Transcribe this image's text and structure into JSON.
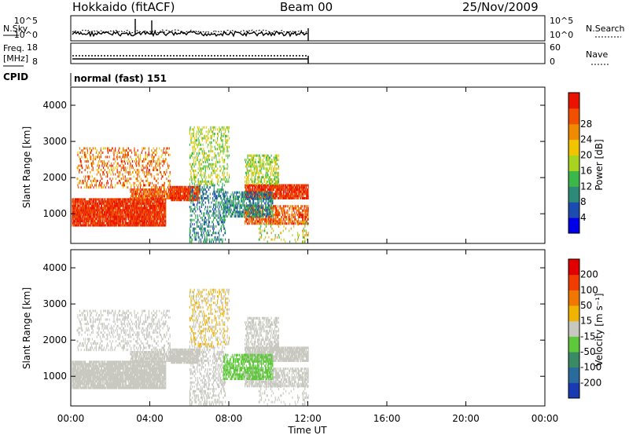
{
  "header": {
    "station": "Hokkaido (fitACF)",
    "beam": "Beam 00",
    "date": "25/Nov/2009"
  },
  "cpid_label": "CPID",
  "cpid_text": "normal (fast) 151",
  "chart_data": [
    {
      "type": "line",
      "name": "N.Sky panel",
      "left_label": "N.Sky",
      "right_label": "N.Search",
      "yticks_left": [
        "10^5",
        "10^0"
      ],
      "yticks_right": [
        "10^5",
        "10^0"
      ],
      "x_range_hours": [
        0,
        24
      ],
      "data_end_hours": 12
    },
    {
      "type": "line",
      "name": "Frequency panel",
      "left_label_1": "Freq.",
      "left_label_2": "[MHz]",
      "right_label": "Nave",
      "yticks_left": [
        "18",
        "8"
      ],
      "yticks_right": [
        "60",
        "0"
      ],
      "x_range_hours": [
        0,
        24
      ],
      "data_end_hours": 12
    },
    {
      "type": "heatmap",
      "name": "Power",
      "ylabel": "Slant Range [km]",
      "yticks": [
        "1000",
        "2000",
        "3000",
        "4000"
      ],
      "ylim": [
        180,
        4500
      ],
      "colorbar_label": "Power [dB]",
      "colorbar_ticks": [
        "4",
        "8",
        "12",
        "16",
        "20",
        "24",
        "28"
      ],
      "colorbar_colors": [
        "#0000e8",
        "#1c4cb0",
        "#2e8a78",
        "#3cb84a",
        "#a8d420",
        "#f0c400",
        "#f08a00",
        "#f05000",
        "#e81400"
      ],
      "x_range_hours": [
        0,
        24
      ]
    },
    {
      "type": "heatmap",
      "name": "Velocity",
      "ylabel": "Slant Range [km]",
      "yticks": [
        "1000",
        "2000",
        "3000",
        "4000"
      ],
      "ylim": [
        180,
        4500
      ],
      "colorbar_label": "Velocity [m s⁻¹]",
      "colorbar_ticks": [
        "200",
        "100",
        "50",
        "15",
        "-15",
        "-50",
        "-100",
        "-200"
      ],
      "colorbar_colors": [
        "#1a3ab4",
        "#2a6a9c",
        "#3a8a66",
        "#5ec83a",
        "#c8c8c0",
        "#f0b400",
        "#f07800",
        "#f03c00",
        "#e00000"
      ],
      "xticks": [
        "00:00",
        "04:00",
        "08:00",
        "12:00",
        "16:00",
        "20:00",
        "00:00"
      ],
      "xlabel": "Time UT",
      "x_range_hours": [
        0,
        24
      ]
    }
  ]
}
